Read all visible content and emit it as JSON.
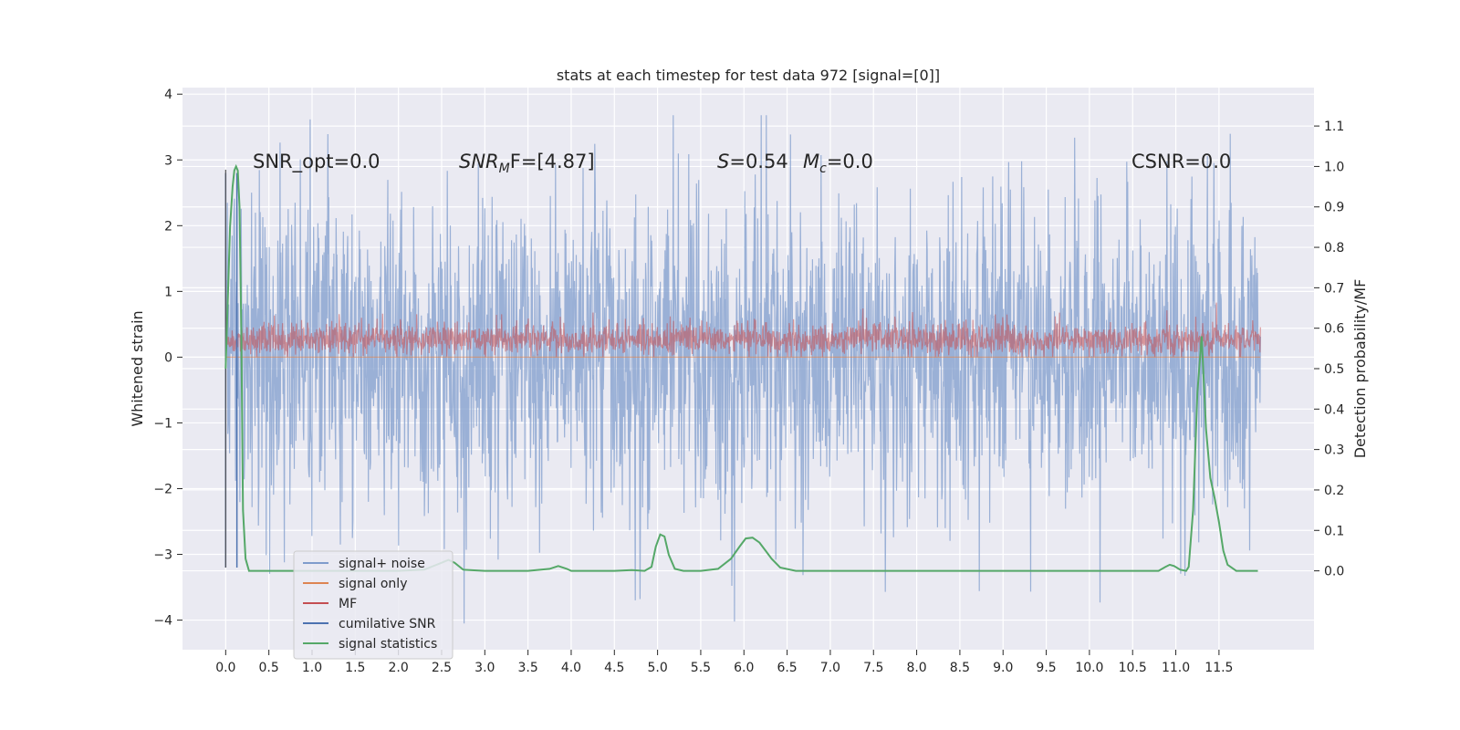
{
  "chart_data": {
    "type": "line",
    "title": "stats at each timestep for test data 972 [signal=[0]]",
    "xlabel": "",
    "ylabel": "Whitened strain",
    "y2label": "Detection probability/MF",
    "xlim": [
      -0.5,
      12.6
    ],
    "ylim": [
      -4.45,
      4.1
    ],
    "y2lim": [
      -0.195,
      1.195
    ],
    "x_ticks": [
      "0.0",
      "0.5",
      "1.0",
      "1.5",
      "2.0",
      "2.5",
      "3.0",
      "3.5",
      "4.0",
      "4.5",
      "5.0",
      "5.5",
      "6.0",
      "6.5",
      "7.0",
      "7.5",
      "8.0",
      "8.5",
      "9.0",
      "9.5",
      "10.0",
      "10.5",
      "11.0",
      "11.5"
    ],
    "y_ticks": [
      4,
      3,
      2,
      1,
      0,
      -1,
      -2,
      -3,
      -4
    ],
    "y_tick_labels": [
      "4",
      "3",
      "2",
      "1",
      "0",
      "−1",
      "−2",
      "−3",
      "−4"
    ],
    "y2_ticks": [
      1.1,
      1.0,
      0.9,
      0.8,
      0.7,
      0.6,
      0.5,
      0.4,
      0.3,
      0.2,
      0.1,
      0.0
    ],
    "y2_tick_labels": [
      "1.1",
      "1.0",
      "0.9",
      "0.8",
      "0.7",
      "0.6",
      "0.5",
      "0.4",
      "0.3",
      "0.2",
      "0.1",
      "0.0"
    ],
    "grid": true,
    "legend_position": "lower-left",
    "annotations": {
      "snr_opt": "SNR_opt=0.0",
      "snr_mf_base": "SNR",
      "snr_mf_sub": "M",
      "snr_mf_tail": "F=[4.87]",
      "s_var": "S",
      "s_val": "=0.54",
      "mc_base": "M",
      "mc_sub": "c",
      "mc_val": "=0.0",
      "csnr": "CSNR=0.0"
    },
    "series": [
      {
        "name": "signal+ noise",
        "color": "#7f9ccc",
        "x_range": [
          0.0,
          11.98
        ],
        "amplitude_typical": [
          -2.2,
          2.2
        ],
        "amplitude_peak": [
          -4.05,
          3.68
        ]
      },
      {
        "name": "signal only",
        "color": "#dd8452",
        "values": [
          0,
          0
        ]
      },
      {
        "name": "MF",
        "color": "#c44e52",
        "x_range": [
          0.0,
          11.98
        ],
        "values_range": [
          0.0,
          0.6
        ]
      },
      {
        "name": "cumilative SNR",
        "color": "#4c72b0",
        "x": [
          0.0,
          0.13
        ],
        "y": [
          -3.2,
          2.8
        ]
      },
      {
        "name": "signal statistics",
        "color": "#55a868",
        "x": [
          0.0,
          0.05,
          0.08,
          0.1,
          0.12,
          0.14,
          0.16,
          0.18,
          0.2,
          0.23,
          0.27,
          0.33,
          0.5,
          1.0,
          1.5,
          2.0,
          2.3,
          2.5,
          2.58,
          2.65,
          2.75,
          3.0,
          3.5,
          3.75,
          3.85,
          3.95,
          4.0,
          4.5,
          4.7,
          4.85,
          4.93,
          4.98,
          5.03,
          5.08,
          5.13,
          5.2,
          5.3,
          5.5,
          5.7,
          5.85,
          5.95,
          6.02,
          6.1,
          6.18,
          6.25,
          6.32,
          6.42,
          6.6,
          7.0,
          8.0,
          9.0,
          10.0,
          10.8,
          10.88,
          10.93,
          10.98,
          11.05,
          11.12,
          11.15,
          11.2,
          11.25,
          11.3,
          11.35,
          11.4,
          11.45,
          11.5,
          11.55,
          11.6,
          11.7,
          11.8,
          11.9,
          11.95
        ],
        "y": [
          0.5,
          0.85,
          0.95,
          0.99,
          1.0,
          0.99,
          0.9,
          0.6,
          0.15,
          0.03,
          0.0,
          0.0,
          0.0,
          0.0,
          0.0,
          0.0,
          0.003,
          0.02,
          0.027,
          0.02,
          0.003,
          0.0,
          0.0,
          0.005,
          0.012,
          0.005,
          0.0,
          0.0,
          0.002,
          0.0,
          0.01,
          0.06,
          0.09,
          0.085,
          0.04,
          0.005,
          0.0,
          0.0,
          0.005,
          0.03,
          0.06,
          0.08,
          0.082,
          0.07,
          0.05,
          0.03,
          0.008,
          0.0,
          0.0,
          0.0,
          0.0,
          0.0,
          0.0,
          0.01,
          0.015,
          0.012,
          0.003,
          0.0,
          0.01,
          0.15,
          0.44,
          0.58,
          0.35,
          0.23,
          0.18,
          0.12,
          0.05,
          0.015,
          0.0,
          0.0,
          0.0,
          0.0
        ]
      }
    ]
  }
}
